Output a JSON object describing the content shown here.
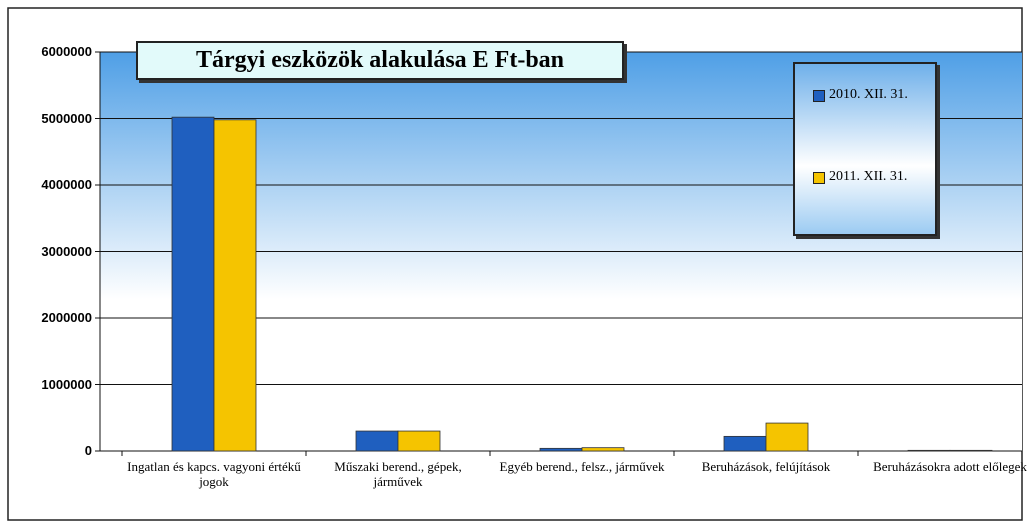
{
  "chart_data": {
    "type": "bar",
    "title": "Tárgyi eszközök alakulása E Ft-ban",
    "categories": [
      "Ingatlan és kapcs. vagyoni értékű jogok",
      "Műszaki berend., gépek, járművek",
      "Egyéb berend., felsz., járművek",
      "Beruházások, felújítások",
      "Beruházásokra adott előlegek"
    ],
    "series": [
      {
        "name": "2010. XII. 31.",
        "color": "#1f5fbf",
        "values": [
          5020000,
          300000,
          40000,
          220000,
          10000
        ]
      },
      {
        "name": "2011. XII. 31.",
        "color": "#f5c400",
        "values": [
          4980000,
          300000,
          50000,
          420000,
          10000
        ]
      }
    ],
    "ylim": [
      0,
      6000000
    ],
    "yticks": [
      0,
      1000000,
      2000000,
      3000000,
      4000000,
      5000000,
      6000000
    ],
    "grid": true,
    "legend": "top-right"
  }
}
